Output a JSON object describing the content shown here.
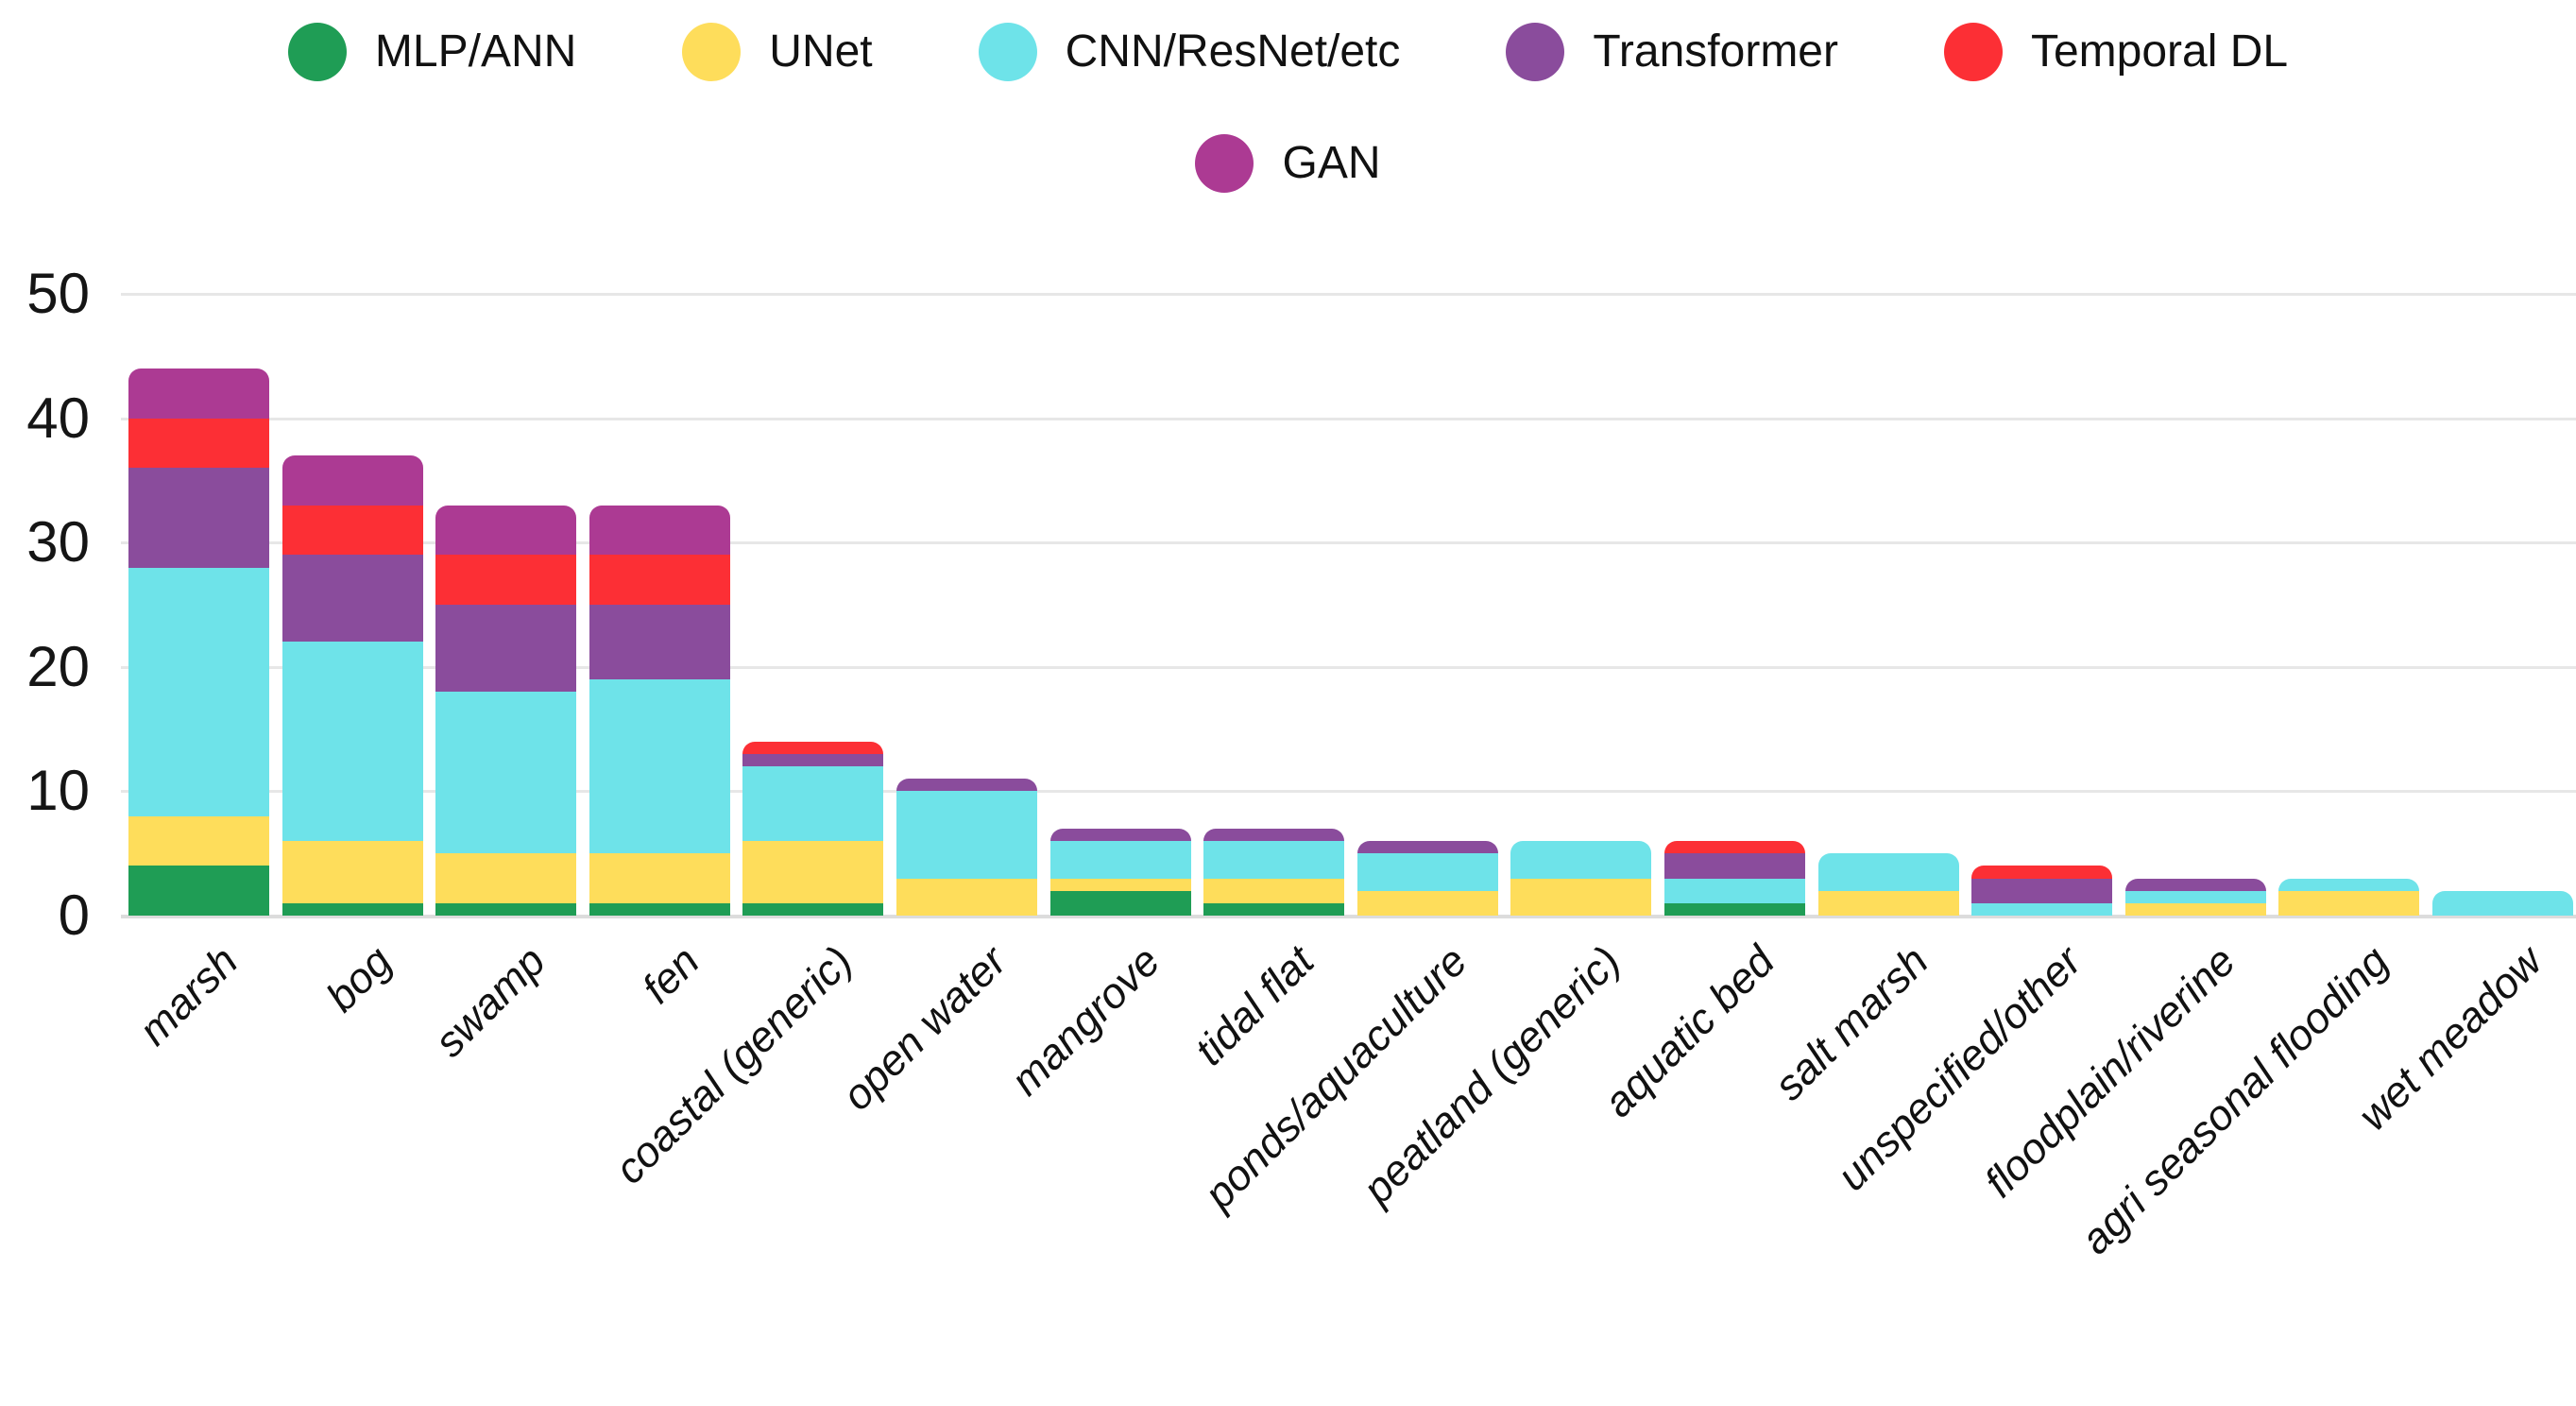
{
  "legend": {
    "row1": [
      {
        "label": "MLP/ANN",
        "color": "#1f9d55"
      },
      {
        "label": "UNet",
        "color": "#fedd5b"
      },
      {
        "label": "CNN/ResNet/etc",
        "color": "#6ee3e9"
      },
      {
        "label": "Transformer",
        "color": "#8a4c9c"
      },
      {
        "label": "Temporal DL",
        "color": "#fc2f35"
      }
    ],
    "row2": [
      {
        "label": "GAN",
        "color": "#ac3a93"
      }
    ]
  },
  "chart_data": {
    "type": "bar",
    "stacked": true,
    "title": "",
    "xlabel": "",
    "ylabel": "",
    "categories": [
      "marsh",
      "bog",
      "swamp",
      "fen",
      "coastal (generic)",
      "open water",
      "mangrove",
      "tidal flat",
      "ponds/aquaculture",
      "peatland (generic)",
      "aquatic bed",
      "salt marsh",
      "unspecified/other",
      "floodplain/riverine",
      "agri seasonal flooding",
      "wet meadow"
    ],
    "series": [
      {
        "name": "MLP/ANN",
        "color": "#1f9d55",
        "values": [
          4,
          1,
          1,
          1,
          1,
          0,
          2,
          1,
          0,
          0,
          1,
          0,
          0,
          0,
          0,
          0
        ]
      },
      {
        "name": "UNet",
        "color": "#fedd5b",
        "values": [
          4,
          5,
          4,
          4,
          5,
          3,
          1,
          2,
          2,
          3,
          0,
          2,
          0,
          1,
          2,
          0
        ]
      },
      {
        "name": "CNN/ResNet/etc",
        "color": "#6ee3e9",
        "values": [
          20,
          16,
          13,
          14,
          6,
          7,
          3,
          3,
          3,
          3,
          2,
          3,
          1,
          1,
          1,
          2
        ]
      },
      {
        "name": "Transformer",
        "color": "#8a4c9c",
        "values": [
          8,
          7,
          7,
          6,
          1,
          1,
          1,
          1,
          1,
          0,
          2,
          0,
          2,
          1,
          0,
          0
        ]
      },
      {
        "name": "Temporal DL",
        "color": "#fc2f35",
        "values": [
          4,
          4,
          4,
          4,
          1,
          0,
          0,
          0,
          0,
          0,
          1,
          0,
          1,
          0,
          0,
          0
        ]
      },
      {
        "name": "GAN",
        "color": "#ac3a93",
        "values": [
          4,
          4,
          4,
          4,
          0,
          0,
          0,
          0,
          0,
          0,
          0,
          0,
          0,
          0,
          0,
          0
        ]
      }
    ],
    "bar_totals": [
      44,
      37,
      33,
      33,
      14,
      11,
      7,
      7,
      6,
      6,
      6,
      5,
      4,
      3,
      3,
      2
    ],
    "yticks": [
      0,
      10,
      20,
      30,
      40,
      50
    ],
    "ylim": [
      0,
      50
    ],
    "grid": "horizontal",
    "legend_position": "top",
    "x_tick_rotation": 45,
    "x_tick_style": "italic",
    "bar_style": "rounded-top"
  }
}
